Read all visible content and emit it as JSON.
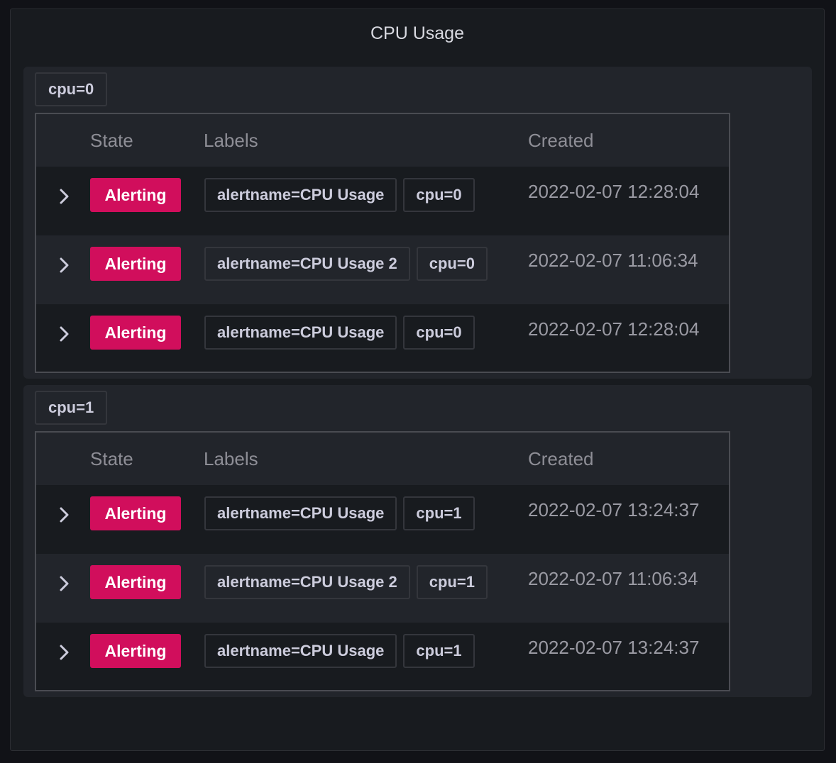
{
  "panel": {
    "title": "CPU Usage"
  },
  "columns": {
    "state": "State",
    "labels": "Labels",
    "created": "Created"
  },
  "colors": {
    "alerting": "#d10e5c",
    "background": "#181b1f"
  },
  "groups": [
    {
      "label": "cpu=0",
      "rows": [
        {
          "state": "Alerting",
          "labels": [
            "alertname=CPU Usage",
            "cpu=0"
          ],
          "created": "2022-02-07 12:28:04"
        },
        {
          "state": "Alerting",
          "labels": [
            "alertname=CPU Usage 2",
            "cpu=0"
          ],
          "created": "2022-02-07 11:06:34"
        },
        {
          "state": "Alerting",
          "labels": [
            "alertname=CPU Usage",
            "cpu=0"
          ],
          "created": "2022-02-07 12:28:04"
        }
      ]
    },
    {
      "label": "cpu=1",
      "rows": [
        {
          "state": "Alerting",
          "labels": [
            "alertname=CPU Usage",
            "cpu=1"
          ],
          "created": "2022-02-07 13:24:37"
        },
        {
          "state": "Alerting",
          "labels": [
            "alertname=CPU Usage 2",
            "cpu=1"
          ],
          "created": "2022-02-07 11:06:34"
        },
        {
          "state": "Alerting",
          "labels": [
            "alertname=CPU Usage",
            "cpu=1"
          ],
          "created": "2022-02-07 13:24:37"
        }
      ]
    }
  ]
}
